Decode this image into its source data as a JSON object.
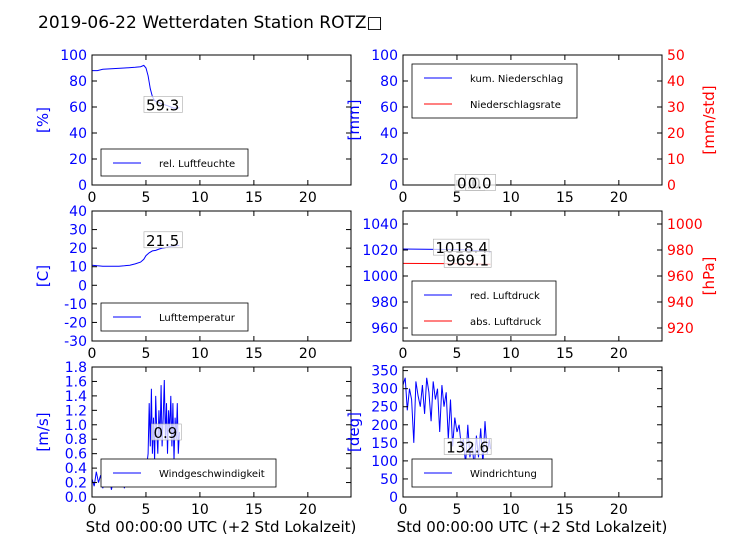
{
  "figure": {
    "title": "2019-06-22 Wetterdaten Station ROTZ□",
    "xlabel": "Std 00:00:00 UTC (+2 Std Lokalzeit)"
  },
  "colors": {
    "primary": "#0000ff",
    "secondary": "#ff0000",
    "text": "#000000",
    "frame": "#000000"
  },
  "chart_data": [
    {
      "id": "luftfeuchte",
      "type": "line",
      "ylabel": "[%]",
      "xlim": [
        0,
        24
      ],
      "ylim": [
        0,
        100
      ],
      "xticks": [
        0,
        5,
        10,
        15,
        20
      ],
      "yticks": [
        0,
        20,
        40,
        60,
        80,
        100
      ],
      "legend_loc": "lower-left",
      "series": [
        {
          "name": "rel. Luftfeuchte",
          "color": "#0000ff",
          "x": [
            0,
            0.5,
            1,
            2,
            3,
            4,
            4.5,
            4.8,
            5.0,
            5.2,
            5.4,
            5.6,
            5.8,
            6.0,
            6.3,
            6.6,
            7.0,
            7.3,
            7.6,
            7.9,
            8.1
          ],
          "y": [
            88,
            88,
            89,
            89.5,
            90,
            90.5,
            91,
            92,
            90,
            84,
            74,
            68,
            65,
            64,
            63,
            62,
            61,
            60,
            59,
            59.5,
            59.3
          ]
        }
      ],
      "annotations": [
        {
          "text": "59.3",
          "x": 5.0,
          "y": 62
        }
      ]
    },
    {
      "id": "niederschlag",
      "type": "line",
      "ylabel": "[mm]",
      "y2label": "[mm/std]",
      "xlim": [
        0,
        24
      ],
      "ylim": [
        0,
        100
      ],
      "y2lim": [
        0,
        50
      ],
      "xticks": [
        0,
        5,
        10,
        15,
        20
      ],
      "yticks": [
        0,
        20,
        40,
        60,
        80,
        100
      ],
      "y2ticks": [
        0,
        10,
        20,
        30,
        40,
        50
      ],
      "legend_loc": "upper-left",
      "series": [
        {
          "name": "kum. Niederschlag",
          "color": "#0000ff",
          "x": [
            0,
            8.1
          ],
          "y": [
            0,
            0
          ]
        },
        {
          "name": "Niederschlagsrate",
          "color": "#ff0000",
          "axis": "y2",
          "x": [
            0,
            8.1
          ],
          "y": [
            0,
            0
          ]
        }
      ],
      "annotations": [
        {
          "text": "0.0",
          "x": 5.0,
          "y": 2
        },
        {
          "text": "0.0",
          "x": 6.0,
          "y": 2
        }
      ]
    },
    {
      "id": "lufttemperatur",
      "type": "line",
      "ylabel": "[C]",
      "xlim": [
        0,
        24
      ],
      "ylim": [
        -30,
        40
      ],
      "xticks": [
        0,
        5,
        10,
        15,
        20
      ],
      "yticks": [
        -30,
        -20,
        -10,
        0,
        10,
        20,
        30,
        40
      ],
      "legend_loc": "lower-left",
      "series": [
        {
          "name": "Lufttemperatur",
          "color": "#0000ff",
          "x": [
            0,
            0.5,
            1,
            1.5,
            2,
            2.5,
            3,
            3.5,
            4,
            4.5,
            4.8,
            5.0,
            5.3,
            5.6,
            5.9,
            6.2,
            6.5,
            6.8,
            7.1,
            7.4,
            7.7,
            8.1
          ],
          "y": [
            10.8,
            10.5,
            10.3,
            10.2,
            10.2,
            10.3,
            10.5,
            10.8,
            11.5,
            12.5,
            14,
            16,
            17.5,
            18.5,
            18.8,
            19.5,
            20,
            20.3,
            20.8,
            21,
            21.3,
            21.5
          ]
        }
      ],
      "annotations": [
        {
          "text": "21.5",
          "x": 5.0,
          "y": 24.5
        }
      ]
    },
    {
      "id": "luftdruck",
      "type": "line",
      "y2label": "[hPa]",
      "xlim": [
        0,
        24
      ],
      "ylim": [
        950,
        1050
      ],
      "y2lim": [
        910,
        1010
      ],
      "xticks": [
        0,
        5,
        10,
        15,
        20
      ],
      "yticks": [
        960,
        980,
        1000,
        1020,
        1040
      ],
      "y2ticks": [
        920,
        940,
        960,
        980,
        1000
      ],
      "legend_loc": "lower-left",
      "series": [
        {
          "name": "red. Luftdruck",
          "color": "#0000ff",
          "x": [
            0,
            2,
            4,
            6,
            8.1
          ],
          "y": [
            1020.8,
            1020.6,
            1020.4,
            1020.2,
            1018.4
          ]
        },
        {
          "name": "abs. Luftdruck",
          "color": "#ff0000",
          "axis": "y2",
          "x": [
            0,
            2,
            4,
            6,
            8.1
          ],
          "y": [
            969.7,
            969.6,
            969.5,
            969.3,
            969.1
          ]
        }
      ],
      "annotations": [
        {
          "text": "1018.4",
          "x": 3.0,
          "y": 1022.2
        },
        {
          "text": "969.1",
          "x": 4.0,
          "y": 1012.8
        }
      ]
    },
    {
      "id": "windgeschwindigkeit",
      "type": "line",
      "ylabel": "[m/s]",
      "xlim": [
        0,
        24
      ],
      "ylim": [
        0,
        1.8
      ],
      "xticks": [
        0,
        5,
        10,
        15,
        20
      ],
      "yticks": [
        0.0,
        0.2,
        0.4,
        0.6,
        0.8,
        1.0,
        1.2,
        1.4,
        1.6,
        1.8
      ],
      "legend_loc": "lower-left",
      "series": [
        {
          "name": "Windgeschwindigkeit",
          "color": "#0000ff",
          "x": [
            0,
            0.2,
            0.4,
            0.6,
            0.8,
            1.0,
            1.2,
            1.4,
            1.6,
            1.8,
            2.0,
            2.2,
            2.4,
            2.6,
            2.8,
            3.0,
            3.2,
            3.4,
            3.6,
            3.8,
            4.0,
            4.2,
            4.4,
            4.6,
            4.8,
            5.0,
            5.2,
            5.3,
            5.4,
            5.5,
            5.6,
            5.7,
            5.8,
            5.9,
            6.0,
            6.1,
            6.2,
            6.3,
            6.4,
            6.5,
            6.6,
            6.7,
            6.8,
            6.9,
            7.0,
            7.1,
            7.2,
            7.3,
            7.4,
            7.5,
            7.6,
            7.7,
            7.8,
            7.9,
            8.0,
            8.1
          ],
          "y": [
            0.25,
            0.15,
            0.35,
            0.2,
            0.3,
            0.12,
            0.28,
            0.18,
            0.32,
            0.1,
            0.25,
            0.2,
            0.35,
            0.15,
            0.3,
            0.12,
            0.28,
            0.22,
            0.3,
            0.15,
            0.35,
            0.2,
            0.3,
            0.15,
            0.4,
            0.35,
            0.6,
            1.3,
            0.7,
            1.5,
            0.6,
            1.1,
            0.5,
            1.4,
            0.9,
            0.6,
            1.2,
            0.8,
            1.55,
            0.7,
            1.1,
            1.62,
            0.8,
            1.3,
            0.6,
            1.2,
            0.9,
            1.4,
            0.7,
            1.3,
            0.5,
            1.1,
            0.8,
            1.3,
            0.6,
            0.9
          ]
        }
      ],
      "annotations": [
        {
          "text": "0.9",
          "x": 5.7,
          "y": 0.9
        }
      ]
    },
    {
      "id": "windrichtung",
      "type": "line",
      "ylabel": "[deg]",
      "xlim": [
        0,
        24
      ],
      "ylim": [
        0,
        360
      ],
      "xticks": [
        0,
        5,
        10,
        15,
        20
      ],
      "yticks": [
        0,
        50,
        100,
        150,
        200,
        250,
        300,
        350
      ],
      "legend_loc": "lower-left",
      "series": [
        {
          "name": "Windrichtung",
          "color": "#0000ff",
          "x": [
            0,
            0.2,
            0.4,
            0.6,
            0.8,
            1.0,
            1.2,
            1.4,
            1.6,
            1.8,
            2.0,
            2.2,
            2.4,
            2.6,
            2.8,
            3.0,
            3.2,
            3.4,
            3.6,
            3.8,
            4.0,
            4.2,
            4.4,
            4.6,
            4.8,
            5.0,
            5.2,
            5.4,
            5.6,
            5.8,
            6.0,
            6.2,
            6.4,
            6.6,
            6.8,
            7.0,
            7.2,
            7.4,
            7.6,
            7.8,
            8.0,
            8.1
          ],
          "y": [
            310,
            330,
            240,
            300,
            270,
            150,
            320,
            280,
            250,
            310,
            230,
            330,
            290,
            210,
            320,
            270,
            300,
            180,
            310,
            250,
            290,
            160,
            270,
            140,
            220,
            180,
            200,
            140,
            160,
            90,
            200,
            110,
            150,
            80,
            170,
            110,
            190,
            90,
            210,
            120,
            160,
            132.6
          ]
        }
      ],
      "annotations": [
        {
          "text": "132.6",
          "x": 4.0,
          "y": 140
        }
      ]
    }
  ]
}
